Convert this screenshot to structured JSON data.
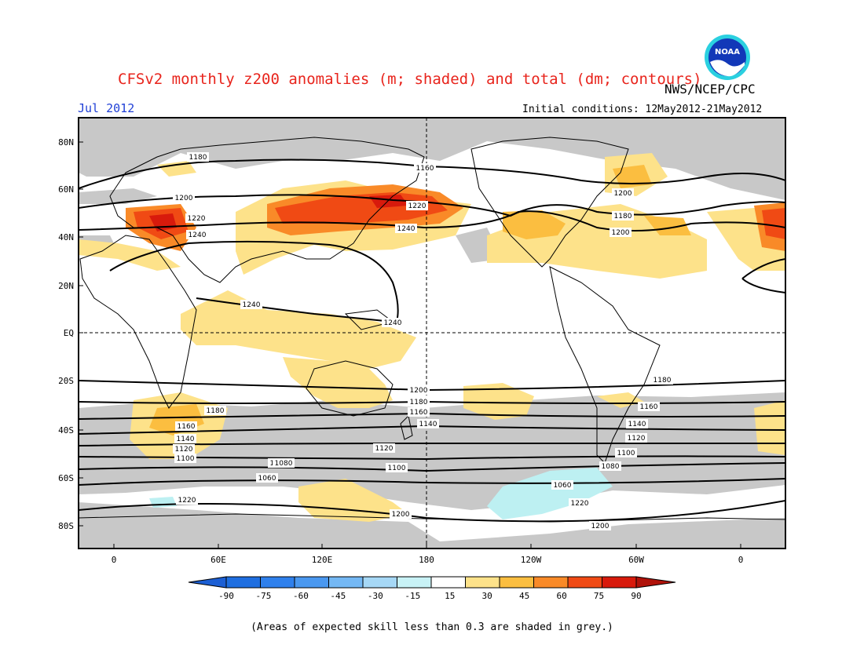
{
  "title": "CFSv2 monthly z200 anomalies (m; shaded) and total (dm; contours)",
  "agency": "NWS/NCEP/CPC",
  "month": "Jul 2012",
  "initial_conditions": "Initial conditions: 12May2012-21May2012",
  "footnote": "(Areas of expected skill less than 0.3 are shaded in grey.)",
  "logo": {
    "icon": "noaa-logo",
    "text": "NOAA"
  },
  "colors": {
    "title": "#e8241c",
    "month": "#1f3fd6",
    "skill_grey": "#c8c8c8",
    "pos15": "#fde28a",
    "pos30": "#fbbe40",
    "pos45": "#f98a28",
    "pos60": "#f04a14",
    "pos75": "#d81a0c",
    "neg15": "#bdf0f2",
    "contour": "#000000"
  },
  "map": {
    "lat_labels": [
      "80N",
      "60N",
      "40N",
      "20N",
      "EQ",
      "20S",
      "40S",
      "60S",
      "80S"
    ],
    "lon_labels": [
      "0",
      "60E",
      "120E",
      "180",
      "120W",
      "60W",
      "0"
    ],
    "contour_labels": [
      "1180",
      "1160",
      "1200",
      "1220",
      "1240",
      "1220",
      "1240",
      "1200",
      "1180",
      "1200",
      "1220",
      "1240",
      "1240",
      "1220",
      "1200",
      "1180",
      "1160",
      "1140",
      "1120",
      "1100",
      "1080",
      "1060",
      "1220",
      "1200",
      "1180",
      "1160",
      "1140",
      "1120",
      "1100",
      "1080",
      "1060",
      "1220",
      "1200",
      "1180",
      "1160",
      "1140",
      "1120",
      "1100",
      "1080",
      "1060"
    ]
  },
  "colorbar": {
    "labels": [
      "-90",
      "-75",
      "-60",
      "-45",
      "-30",
      "-15",
      "15",
      "30",
      "45",
      "60",
      "75",
      "90"
    ],
    "colors": [
      "#1e6ee0",
      "#2f80ec",
      "#4a98f0",
      "#74b8f4",
      "#a6d8f6",
      "#c8f2f6",
      "#ffffff",
      "#fde28a",
      "#fbbe40",
      "#f98a28",
      "#f04a14",
      "#d81a0c"
    ],
    "low_arrow_color": "#1c5fd4",
    "high_arrow_color": "#b0120a"
  }
}
